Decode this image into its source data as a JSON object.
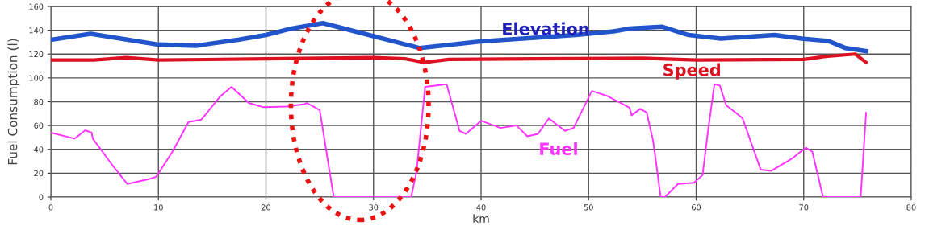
{
  "chart_data": {
    "type": "line",
    "xlabel": "km",
    "ylabel": "Fuel Consumption (l)",
    "xlim": [
      0,
      80
    ],
    "xticks": [
      0,
      10,
      20,
      30,
      40,
      50,
      60,
      70,
      80
    ],
    "ylim": [
      0,
      160
    ],
    "yticks": [
      0,
      20,
      40,
      60,
      80,
      100,
      120,
      140,
      160
    ],
    "grid": true,
    "legend": false,
    "marker": "none",
    "line_style": "solid",
    "series": [
      {
        "name": "Elevation",
        "color": "#2255cc",
        "x": [
          0,
          3.7,
          10,
          13.5,
          17.4,
          20,
          22.4,
          25.3,
          30,
          34.3,
          40,
          48.8,
          52.3,
          53.8,
          56.8,
          59.3,
          62.3,
          67.3,
          69.8,
          72.3,
          73.9,
          75.8
        ],
        "values": [
          132,
          137,
          128,
          127,
          132,
          136,
          141.5,
          146,
          135,
          125,
          130.6,
          136,
          139,
          141.5,
          143,
          136,
          133,
          136,
          133,
          131,
          125,
          122.5
        ]
      },
      {
        "name": "Speed",
        "color": "#dd1122",
        "x": [
          0,
          4,
          7,
          10,
          20,
          30,
          33,
          34.7,
          37,
          45,
          55,
          60,
          70,
          72,
          74.8,
          75.8
        ],
        "values": [
          115,
          115,
          117,
          115,
          116,
          117,
          116,
          113,
          115.5,
          116,
          116.5,
          115,
          115.5,
          118,
          120,
          113
        ]
      },
      {
        "name": "Fuel",
        "color": "#ff33ff",
        "x": [
          0,
          2.2,
          3.2,
          3.8,
          3.9,
          5.7,
          7.1,
          9.1,
          9.8,
          11.3,
          12.8,
          14,
          15.7,
          16.8,
          18.4,
          19.7,
          21.9,
          23.6,
          23.8,
          25,
          26.3,
          33.5,
          34,
          34.8,
          36.8,
          38,
          38.6,
          40,
          41.8,
          43.3,
          44.3,
          45.3,
          46.3,
          47.8,
          48.6,
          50.3,
          51.7,
          53.8,
          54,
          54.8,
          55.4,
          56,
          56.7,
          57.1,
          58.3,
          59.8,
          60.6,
          61.1,
          61.7,
          62.2,
          62.8,
          64.3,
          66,
          67,
          68.8,
          70.2,
          70.8,
          71.6,
          71.8,
          75.3,
          75.8
        ],
        "values": [
          54,
          49,
          56,
          54,
          49,
          27,
          11,
          15,
          17,
          38,
          63,
          65,
          84,
          92.5,
          79,
          75.5,
          76,
          78,
          79,
          73,
          0,
          0,
          21,
          92.5,
          94.7,
          55.5,
          53,
          64,
          58,
          60,
          51,
          53,
          66,
          55.5,
          58,
          89,
          85,
          75,
          68.6,
          74,
          71,
          47,
          0,
          0,
          11,
          12,
          18.5,
          55.5,
          94.7,
          93.6,
          77,
          66.4,
          23,
          22,
          31.6,
          41.4,
          38,
          7.6,
          0,
          0,
          70.7
        ]
      }
    ]
  }
}
